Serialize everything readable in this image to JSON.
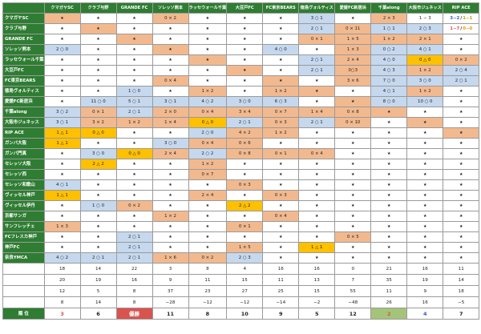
{
  "colors": {
    "header_bg": "#2e7d32",
    "win": "#f2b98f",
    "loss": "#c5d8ee",
    "draw": "#ffc000",
    "rank_1": "#d9534f",
    "rank_2": "#2e7d32",
    "rank_3": "#2f5bd0",
    "rank_4": "#a4c47a"
  },
  "columns": [
    "クマガヤSC",
    "クラブ与野",
    "GRANDE FC",
    "ソレッソ熊本",
    "ラッセウォール千葉",
    "大豆戸FC",
    "FC東京BEARS",
    "徳島ヴォルティス",
    "愛媛FC新居浜",
    "千葉along",
    "大阪市ジュネッス",
    "RIP ACE"
  ],
  "rows": [
    {
      "name": "クマガヤSC",
      "cells": [
        [
          "★",
          "s"
        ],
        [
          "★",
          "w"
        ],
        [
          "★",
          "w"
        ],
        [
          "0 × 2",
          "s"
        ],
        [
          "★",
          "w"
        ],
        [
          "★",
          "w"
        ],
        [
          "★",
          "w"
        ],
        [
          "3 ○ 1",
          "b"
        ],
        [
          "★",
          "w"
        ],
        [
          "2 × 3",
          "s"
        ],
        [
          "1 − 3",
          "w"
        ],
        [
          "3−2 / 1−1",
          "legend1"
        ]
      ]
    },
    {
      "name": "クラブ与野",
      "cells": [
        [
          "★",
          "w"
        ],
        [
          "★",
          "s"
        ],
        [
          "★",
          "w"
        ],
        [
          "★",
          "w"
        ],
        [
          "★",
          "w"
        ],
        [
          "★",
          "w"
        ],
        [
          "★",
          "w"
        ],
        [
          "2 ○ 1",
          "b"
        ],
        [
          "0 × 11",
          "s"
        ],
        [
          "1 ○ 1",
          "b"
        ],
        [
          "2 ○ 3",
          "b"
        ],
        [
          "1−7 / 0−0",
          "legend2"
        ]
      ]
    },
    {
      "name": "GRANDE FC",
      "cells": [
        [
          "★",
          "w"
        ],
        [
          "★",
          "w"
        ],
        [
          "★",
          "s"
        ],
        [
          "★",
          "w"
        ],
        [
          "★",
          "w"
        ],
        [
          "★",
          "w"
        ],
        [
          "★",
          "w"
        ],
        [
          "0 × 1",
          "s"
        ],
        [
          "1 × 5",
          "s"
        ],
        [
          "1 × 2",
          "s"
        ],
        [
          "2 × 1",
          "s"
        ],
        [
          "★",
          "w"
        ]
      ]
    },
    {
      "name": "ソレッソ熊本",
      "cells": [
        [
          "2 ○ 0",
          "b"
        ],
        [
          "★",
          "w"
        ],
        [
          "★",
          "w"
        ],
        [
          "★",
          "s"
        ],
        [
          "★",
          "w"
        ],
        [
          "★",
          "w"
        ],
        [
          "4 ○ 0",
          "b"
        ],
        [
          "★",
          "w"
        ],
        [
          "1 × 3",
          "s"
        ],
        [
          "0 ○ 2",
          "b"
        ],
        [
          "4 ○ 1",
          "b"
        ],
        [
          "★",
          "w"
        ]
      ]
    },
    {
      "name": "ラッセウォール千葉",
      "cells": [
        [
          "★",
          "w"
        ],
        [
          "★",
          "w"
        ],
        [
          "★",
          "w"
        ],
        [
          "★",
          "w"
        ],
        [
          "★",
          "s"
        ],
        [
          "★",
          "w"
        ],
        [
          "★",
          "w"
        ],
        [
          "2 ○ 1",
          "b"
        ],
        [
          "2 × 4",
          "s"
        ],
        [
          "4 ○ 0",
          "b"
        ],
        [
          "0 △ 0",
          "y"
        ],
        [
          "0 × 2",
          "s"
        ]
      ]
    },
    {
      "name": "大豆戸FC",
      "cells": [
        [
          "★",
          "w"
        ],
        [
          "★",
          "w"
        ],
        [
          "★",
          "w"
        ],
        [
          "★",
          "w"
        ],
        [
          "★",
          "w"
        ],
        [
          "★",
          "s"
        ],
        [
          "★",
          "w"
        ],
        [
          "2 ○ 1",
          "b"
        ],
        [
          "0○3",
          "s"
        ],
        [
          "4 ○ 3",
          "b"
        ],
        [
          "1 × 2",
          "s"
        ],
        [
          "2 ○ 4",
          "b"
        ]
      ]
    },
    {
      "name": "FC東京BEARS",
      "cells": [
        [
          "★",
          "w"
        ],
        [
          "★",
          "w"
        ],
        [
          "★",
          "w"
        ],
        [
          "0 × 4",
          "s"
        ],
        [
          "★",
          "w"
        ],
        [
          "★",
          "w"
        ],
        [
          "★",
          "s"
        ],
        [
          "★",
          "w"
        ],
        [
          "3 × 6",
          "s"
        ],
        [
          "7 ○ 0",
          "b"
        ],
        [
          "3 ○ 0",
          "b"
        ],
        [
          "2 ○ 1",
          "b"
        ]
      ]
    },
    {
      "name": "徳島ヴォルティス",
      "cells": [
        [
          "★",
          "w"
        ],
        [
          "★",
          "w"
        ],
        [
          "1 ○ 0",
          "b"
        ],
        [
          "★",
          "w"
        ],
        [
          "1 × 2",
          "s"
        ],
        [
          "★",
          "w"
        ],
        [
          "1 × 2",
          "s"
        ],
        [
          "★",
          "s"
        ],
        [
          "★",
          "w"
        ],
        [
          "4 ○ 1",
          "b"
        ],
        [
          "1 × 2",
          "s"
        ],
        [
          "★",
          "w"
        ]
      ]
    },
    {
      "name": "愛媛FC新居浜",
      "cells": [
        [
          "★",
          "w"
        ],
        [
          "11 ○ 0",
          "b"
        ],
        [
          "5 ○ 1",
          "b"
        ],
        [
          "3 ○ 1",
          "b"
        ],
        [
          "4 ○ 2",
          "b"
        ],
        [
          "3 ○ 0",
          "b"
        ],
        [
          "6 ○ 3",
          "b"
        ],
        [
          "★",
          "w"
        ],
        [
          "★",
          "s"
        ],
        [
          "8 ○ 0",
          "b"
        ],
        [
          "10 ○ 0",
          "b"
        ],
        [
          "★",
          "w"
        ]
      ]
    },
    {
      "name": "千葉along",
      "cells": [
        [
          "3 ○ 2",
          "b"
        ],
        [
          "0 × 1",
          "s"
        ],
        [
          "2 ○ 1",
          "b"
        ],
        [
          "2 × 0",
          "s"
        ],
        [
          "0 × 4",
          "s"
        ],
        [
          "3 × 4",
          "s"
        ],
        [
          "0 × 7",
          "s"
        ],
        [
          "1 × 4",
          "s"
        ],
        [
          "0 × 8",
          "s"
        ],
        [
          "★",
          "s"
        ],
        [
          "★",
          "w"
        ],
        [
          "★",
          "w"
        ]
      ]
    },
    {
      "name": "大阪市ジュネッス",
      "cells": [
        [
          "3 ○ 1",
          "b"
        ],
        [
          "3 × 2",
          "s"
        ],
        [
          "1 × 2",
          "s"
        ],
        [
          "1 × 4",
          "s"
        ],
        [
          "0 △ 0",
          "y"
        ],
        [
          "2 ○ 1",
          "b"
        ],
        [
          "0 × 3",
          "s"
        ],
        [
          "2 ○ 1",
          "b"
        ],
        [
          "0 × 10",
          "s"
        ],
        [
          "★",
          "w"
        ],
        [
          "★",
          "s"
        ],
        [
          "★",
          "w"
        ]
      ]
    },
    {
      "name": "RIP ACE",
      "cells": [
        [
          "1 △ 1",
          "y"
        ],
        [
          "0 △ 0",
          "y"
        ],
        [
          "★",
          "w"
        ],
        [
          "★",
          "w"
        ],
        [
          "2 ○ 0",
          "b"
        ],
        [
          "4 × 2",
          "s"
        ],
        [
          "1 × 2",
          "s"
        ],
        [
          "★",
          "w"
        ],
        [
          "★",
          "w"
        ],
        [
          "★",
          "w"
        ],
        [
          "★",
          "w"
        ],
        [
          "★",
          "s"
        ]
      ]
    },
    {
      "name": "ガンバ大阪",
      "cells": [
        [
          "1 △ 1",
          "y"
        ],
        [
          "★",
          "w"
        ],
        [
          "★",
          "w"
        ],
        [
          "3 ○ 0",
          "b"
        ],
        [
          "0 × 4",
          "s"
        ],
        [
          "0 × 6",
          "s"
        ],
        [
          "★",
          "w"
        ],
        [
          "★",
          "w"
        ],
        [
          "★",
          "w"
        ],
        [
          "★",
          "w"
        ],
        [
          "★",
          "w"
        ],
        [
          "★",
          "w"
        ]
      ]
    },
    {
      "name": "ガンバ門真",
      "cells": [
        [
          "★",
          "w"
        ],
        [
          "3 ○ 0",
          "b"
        ],
        [
          "0 △ 0",
          "y"
        ],
        [
          "2 × 4",
          "s"
        ],
        [
          "2 ○ 2",
          "b"
        ],
        [
          "0 × 8",
          "s"
        ],
        [
          "0 × 1",
          "s"
        ],
        [
          "0 × 4",
          "s"
        ],
        [
          "★",
          "w"
        ],
        [
          "★",
          "w"
        ],
        [
          "★",
          "w"
        ],
        [
          "★",
          "w"
        ]
      ]
    },
    {
      "name": "セレッソ大阪",
      "cells": [
        [
          "★",
          "w"
        ],
        [
          "2 △ 2",
          "y"
        ],
        [
          "★",
          "w"
        ],
        [
          "★",
          "w"
        ],
        [
          "1 × 2",
          "s"
        ],
        [
          "★",
          "w"
        ],
        [
          "★",
          "w"
        ],
        [
          "★",
          "w"
        ],
        [
          "★",
          "w"
        ],
        [
          "★",
          "w"
        ],
        [
          "★",
          "w"
        ],
        [
          "★",
          "w"
        ]
      ]
    },
    {
      "name": "セレッソ西",
      "cells": [
        [
          "★",
          "w"
        ],
        [
          "★",
          "w"
        ],
        [
          "★",
          "w"
        ],
        [
          "★",
          "w"
        ],
        [
          "0 × 7",
          "s"
        ],
        [
          "★",
          "w"
        ],
        [
          "★",
          "w"
        ],
        [
          "★",
          "w"
        ],
        [
          "★",
          "w"
        ],
        [
          "★",
          "w"
        ],
        [
          "★",
          "w"
        ],
        [
          "★",
          "w"
        ]
      ]
    },
    {
      "name": "セレッソ和歌山",
      "cells": [
        [
          "4 ○ 1",
          "b"
        ],
        [
          "★",
          "w"
        ],
        [
          "★",
          "w"
        ],
        [
          "★",
          "w"
        ],
        [
          "★",
          "w"
        ],
        [
          "0 × 3",
          "s"
        ],
        [
          "★",
          "w"
        ],
        [
          "★",
          "w"
        ],
        [
          "★",
          "w"
        ],
        [
          "★",
          "w"
        ],
        [
          "★",
          "w"
        ],
        [
          "★",
          "w"
        ]
      ]
    },
    {
      "name": "ヴィッセル神戸",
      "cells": [
        [
          "1 △ 1",
          "y"
        ],
        [
          "★",
          "w"
        ],
        [
          "★",
          "w"
        ],
        [
          "★",
          "w"
        ],
        [
          "2 × 4",
          "s"
        ],
        [
          "★",
          "w"
        ],
        [
          "0 × 3",
          "s"
        ],
        [
          "★",
          "w"
        ],
        [
          "★",
          "w"
        ],
        [
          "★",
          "w"
        ],
        [
          "★",
          "w"
        ],
        [
          "★",
          "w"
        ]
      ]
    },
    {
      "name": "ヴィッセル伊丹",
      "cells": [
        [
          "★",
          "w"
        ],
        [
          "1 ○ 0",
          "b"
        ],
        [
          "0 × 2",
          "s"
        ],
        [
          "★",
          "w"
        ],
        [
          "★",
          "w"
        ],
        [
          "2 △ 2",
          "y"
        ],
        [
          "★",
          "w"
        ],
        [
          "★",
          "w"
        ],
        [
          "★",
          "w"
        ],
        [
          "★",
          "w"
        ],
        [
          "★",
          "w"
        ],
        [
          "★",
          "w"
        ]
      ]
    },
    {
      "name": "京都サンガ",
      "cells": [
        [
          "★",
          "w"
        ],
        [
          "★",
          "w"
        ],
        [
          "★",
          "w"
        ],
        [
          "1 × 2",
          "s"
        ],
        [
          "★",
          "w"
        ],
        [
          "★",
          "w"
        ],
        [
          "0 × 4",
          "s"
        ],
        [
          "★",
          "w"
        ],
        [
          "★",
          "w"
        ],
        [
          "★",
          "w"
        ],
        [
          "★",
          "w"
        ],
        [
          "★",
          "w"
        ]
      ]
    },
    {
      "name": "サンフレッチェ",
      "cells": [
        [
          "1 × 3",
          "s"
        ],
        [
          "★",
          "w"
        ],
        [
          "★",
          "w"
        ],
        [
          "★",
          "w"
        ],
        [
          "★",
          "w"
        ],
        [
          "0 × 1",
          "s"
        ],
        [
          "★",
          "w"
        ],
        [
          "★",
          "w"
        ],
        [
          "★",
          "w"
        ],
        [
          "★",
          "w"
        ],
        [
          "★",
          "w"
        ],
        [
          "★",
          "w"
        ]
      ]
    },
    {
      "name": "FCフレスカ神戸",
      "cells": [
        [
          "★",
          "w"
        ],
        [
          "★",
          "w"
        ],
        [
          "2 ○ 1",
          "b"
        ],
        [
          "★",
          "w"
        ],
        [
          "★",
          "w"
        ],
        [
          "★",
          "w"
        ],
        [
          "★",
          "w"
        ],
        [
          "★",
          "w"
        ],
        [
          "0 × 5",
          "s"
        ],
        [
          "★",
          "w"
        ],
        [
          "★",
          "w"
        ],
        [
          "★",
          "w"
        ]
      ]
    },
    {
      "name": "神戸FC",
      "cells": [
        [
          "★",
          "w"
        ],
        [
          "★",
          "w"
        ],
        [
          "2 ○ 1",
          "b"
        ],
        [
          "★",
          "w"
        ],
        [
          "★",
          "w"
        ],
        [
          "1 × 5",
          "s"
        ],
        [
          "★",
          "w"
        ],
        [
          "1 △ 1",
          "y"
        ],
        [
          "★",
          "w"
        ],
        [
          "★",
          "w"
        ],
        [
          "★",
          "w"
        ],
        [
          "★",
          "w"
        ]
      ]
    },
    {
      "name": "奈良YMCA",
      "cells": [
        [
          "4 ○ 2",
          "b"
        ],
        [
          "2 ○ 1",
          "b"
        ],
        [
          "2 ○ 1",
          "b"
        ],
        [
          "1 × 6",
          "s"
        ],
        [
          "0 × 2",
          "s"
        ],
        [
          "2 ○ 3",
          "b"
        ],
        [
          "★",
          "w"
        ],
        [
          "★",
          "w"
        ],
        [
          "★",
          "w"
        ],
        [
          "★",
          "w"
        ],
        [
          "★",
          "w"
        ],
        [
          "★",
          "w"
        ]
      ]
    }
  ],
  "summary": [
    {
      "label": "勝 点",
      "values": [
        "18",
        "14",
        "22",
        "3",
        "8",
        "4",
        "16",
        "16",
        "0",
        "21",
        "16",
        "11"
      ]
    },
    {
      "label": "得 点",
      "values": [
        "20",
        "19",
        "16",
        "9",
        "11",
        "15",
        "11",
        "13",
        "7",
        "35",
        "19",
        "14"
      ]
    },
    {
      "label": "失 点",
      "values": [
        "12",
        "5",
        "8",
        "37",
        "23",
        "27",
        "25",
        "15",
        "55",
        "11",
        "9",
        "18"
      ]
    },
    {
      "label": "得失点差",
      "values": [
        "8",
        "14",
        "8",
        "−28",
        "−12",
        "−12",
        "−14",
        "−2",
        "−48",
        "26",
        "16",
        "−5"
      ]
    }
  ],
  "rank": {
    "label": "順 位",
    "values": [
      "3",
      "6",
      "優勝",
      "11",
      "8",
      "10",
      "9",
      "5",
      "12",
      "2",
      "4",
      "7"
    ],
    "styles": [
      "color:#d9534f",
      "color:#222",
      "background:#d9534f;color:#fff",
      "color:#222",
      "color:#222",
      "color:#222",
      "color:#222",
      "color:#222",
      "color:#222",
      "background:#a4c47a;color:#d9534f",
      "color:#2f5bd0",
      "color:#222"
    ]
  }
}
